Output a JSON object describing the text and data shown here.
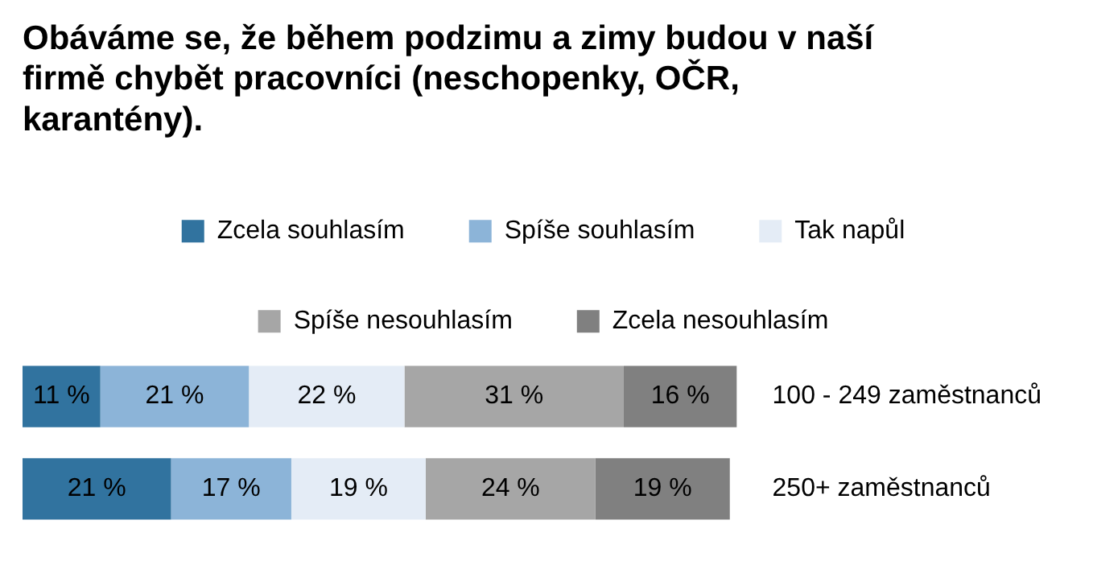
{
  "chart_data": {
    "type": "bar",
    "orientation": "horizontal",
    "stacked": true,
    "title": "Obáváme se, že během podzimu a zimy budou v naší firmě chybět pracovníci (neschopenky, OČR, karantény).",
    "categories": [
      "100 - 249 zaměstnanců",
      "250+ zaměstnanců"
    ],
    "legend": "top",
    "series": [
      {
        "name": "Zcela souhlasím",
        "color": "#31739f",
        "values": [
          11,
          21
        ],
        "value_labels": [
          "11 %",
          "21 %"
        ]
      },
      {
        "name": "Spíše souhlasím",
        "color": "#8cb4d8",
        "values": [
          21,
          17
        ],
        "value_labels": [
          "21 %",
          "17 %"
        ]
      },
      {
        "name": "Tak napůl",
        "color": "#e4ecf6",
        "values": [
          22,
          19
        ],
        "value_labels": [
          "22 %",
          "19 %"
        ]
      },
      {
        "name": "Spíše nesouhlasím",
        "color": "#a6a6a6",
        "values": [
          31,
          24
        ],
        "value_labels": [
          "31 %",
          "24 %"
        ]
      },
      {
        "name": "Zcela nesouhlasím",
        "color": "#808080",
        "values": [
          16,
          19
        ],
        "value_labels": [
          "16 %",
          "19 %"
        ]
      }
    ]
  }
}
